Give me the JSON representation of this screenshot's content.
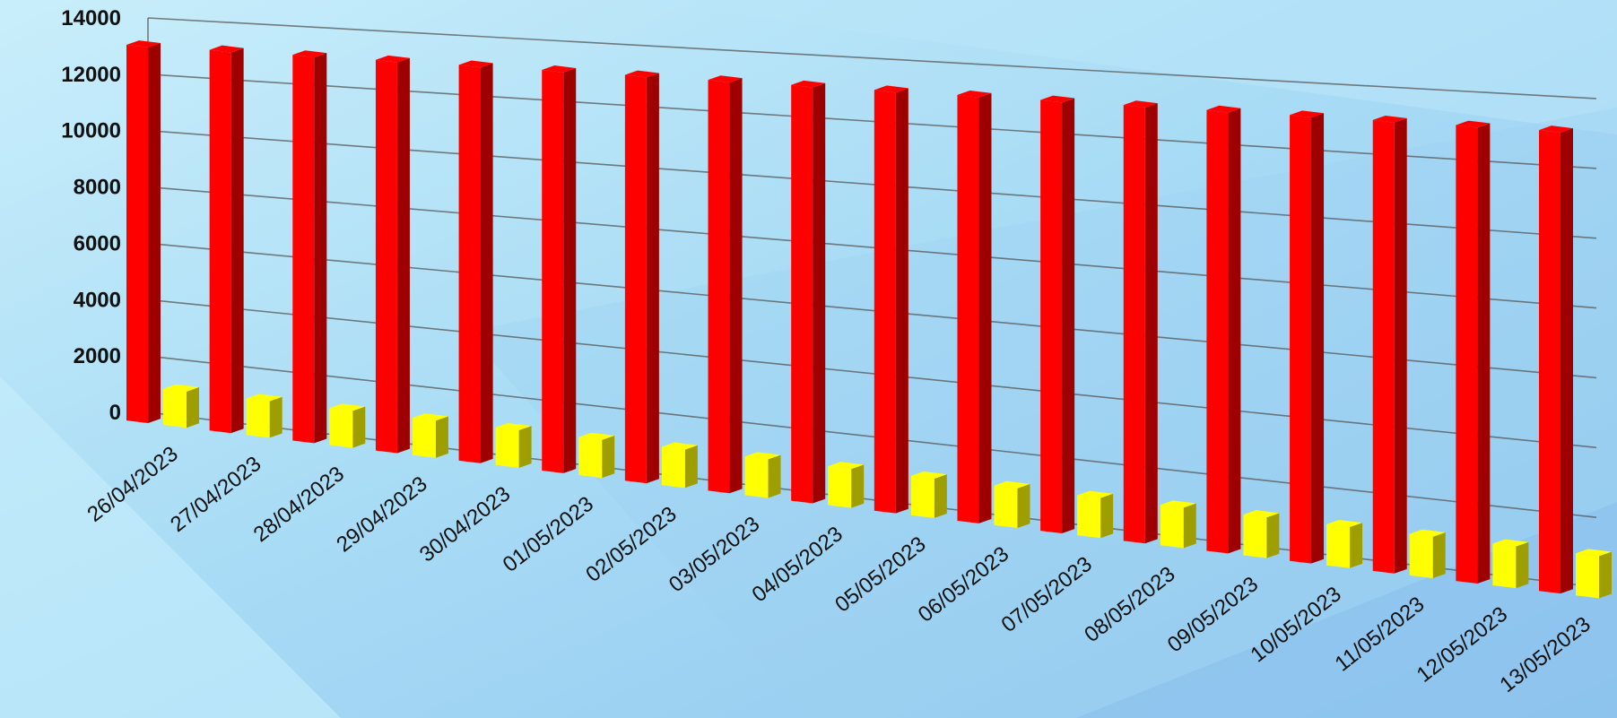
{
  "chart_data": {
    "type": "bar",
    "style": "3d-clustered-column",
    "categories": [
      "26/04/2023",
      "27/04/2023",
      "28/04/2023",
      "29/04/2023",
      "30/04/2023",
      "01/05/2023",
      "02/05/2023",
      "03/05/2023",
      "04/05/2023",
      "05/05/2023",
      "06/05/2023",
      "07/05/2023",
      "08/05/2023",
      "09/05/2023",
      "10/05/2023",
      "11/05/2023",
      "12/05/2023",
      "13/05/2023"
    ],
    "series": [
      {
        "color": "#ff0000",
        "values": [
          13000,
          13000,
          13000,
          13000,
          13000,
          13000,
          13000,
          13000,
          13000,
          13000,
          13000,
          13000,
          13000,
          13000,
          13000,
          13000,
          13000,
          13000
        ]
      },
      {
        "color": "#ffff00",
        "values": [
          900,
          900,
          900,
          900,
          900,
          900,
          900,
          900,
          900,
          900,
          900,
          900,
          900,
          900,
          900,
          900,
          900,
          900
        ]
      }
    ],
    "ylim": [
      0,
      14000
    ],
    "yticks": [
      "0",
      "2000",
      "4000",
      "6000",
      "8000",
      "10000",
      "12000",
      "14000"
    ],
    "grid": true,
    "legend": "none"
  },
  "colors": {
    "background": "#b6e3f7",
    "grid": "#555555",
    "red_series": "#ff0000",
    "yellow_series": "#ffff00"
  }
}
